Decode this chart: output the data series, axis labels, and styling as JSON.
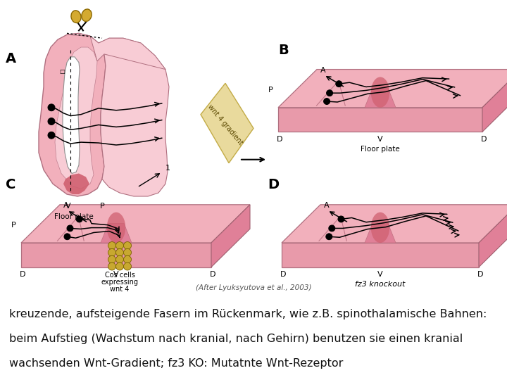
{
  "bg_white": "#ffffff",
  "bg_tan": "#d4c9a0",
  "pink_main": "#f2b0bc",
  "pink_side": "#e89aaa",
  "pink_light": "#f8ccd5",
  "pink_dark": "#e08098",
  "floor_red": "#d06070",
  "cell_gold": "#c8a830",
  "wnt_tan": "#e8d898",
  "black": "#000000",
  "caption_lines": [
    "kreuzende, aufsteigende Fasern im Rückenmark, wie z.B. spinothalamische Bahnen:",
    "beim Aufstieg (Wachstum nach kranial, nach Gehirn) benutzen sie einen kranial",
    "wachsenden Wnt-Gradient; fz3 KO: Mutatnte Wnt-Rezeptor"
  ],
  "subcaption": "(After Lyuksyutova et al., 2003)",
  "caption_fontsize": 11.5,
  "sub_fontsize": 7.5,
  "panel_fontsize": 14
}
